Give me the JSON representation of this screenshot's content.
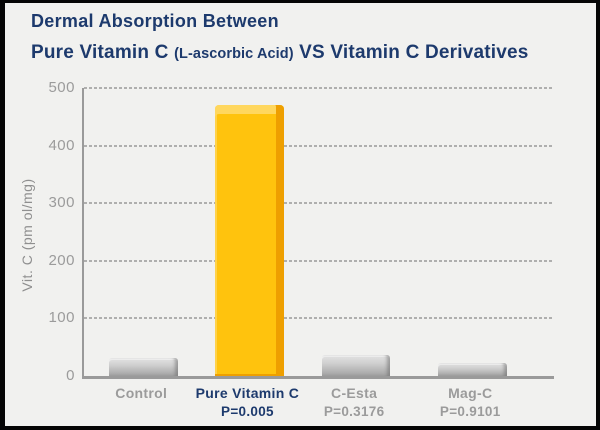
{
  "title": {
    "line1": "Dermal Absorption Between",
    "line2_part1": "Pure Vitamin C ",
    "line2_part2": "(L-ascorbic Acid)",
    "line2_part3": " VS Vitamin C Derivatives"
  },
  "colors": {
    "title_navy": "#1d3a6d",
    "gray_text": "#9b9b9b",
    "axis_gray": "#9a9a9a",
    "background": "#f1f1ef",
    "frame_border": "#050505",
    "bar_gray_top": "#e4e4e4",
    "bar_gray_bottom": "#a2a2a2",
    "bar_yellow": "#ffc30d",
    "bar_yellow_side": "#ee9f00",
    "bar_yellow_top": "#ffd75e"
  },
  "chart_data": {
    "type": "bar",
    "title": "Dermal Absorption Between Pure Vitamin C (L-ascorbic Acid) VS Vitamin C Derivatives",
    "xlabel": "",
    "ylabel": "Vit. C (pm ol/mg)",
    "ylim": [
      0,
      500
    ],
    "yticks": [
      0,
      100,
      200,
      300,
      400,
      500
    ],
    "grid": "horizontal-dashed",
    "legend": "none",
    "categories": [
      "Control",
      "Pure Vitamin C",
      "C-Esta",
      "Mag-C"
    ],
    "values": [
      32,
      470,
      36,
      23
    ],
    "sublabels": [
      "",
      "P=0.005",
      "P=0.3176",
      "P=0.9101"
    ],
    "highlight_index": 1
  }
}
